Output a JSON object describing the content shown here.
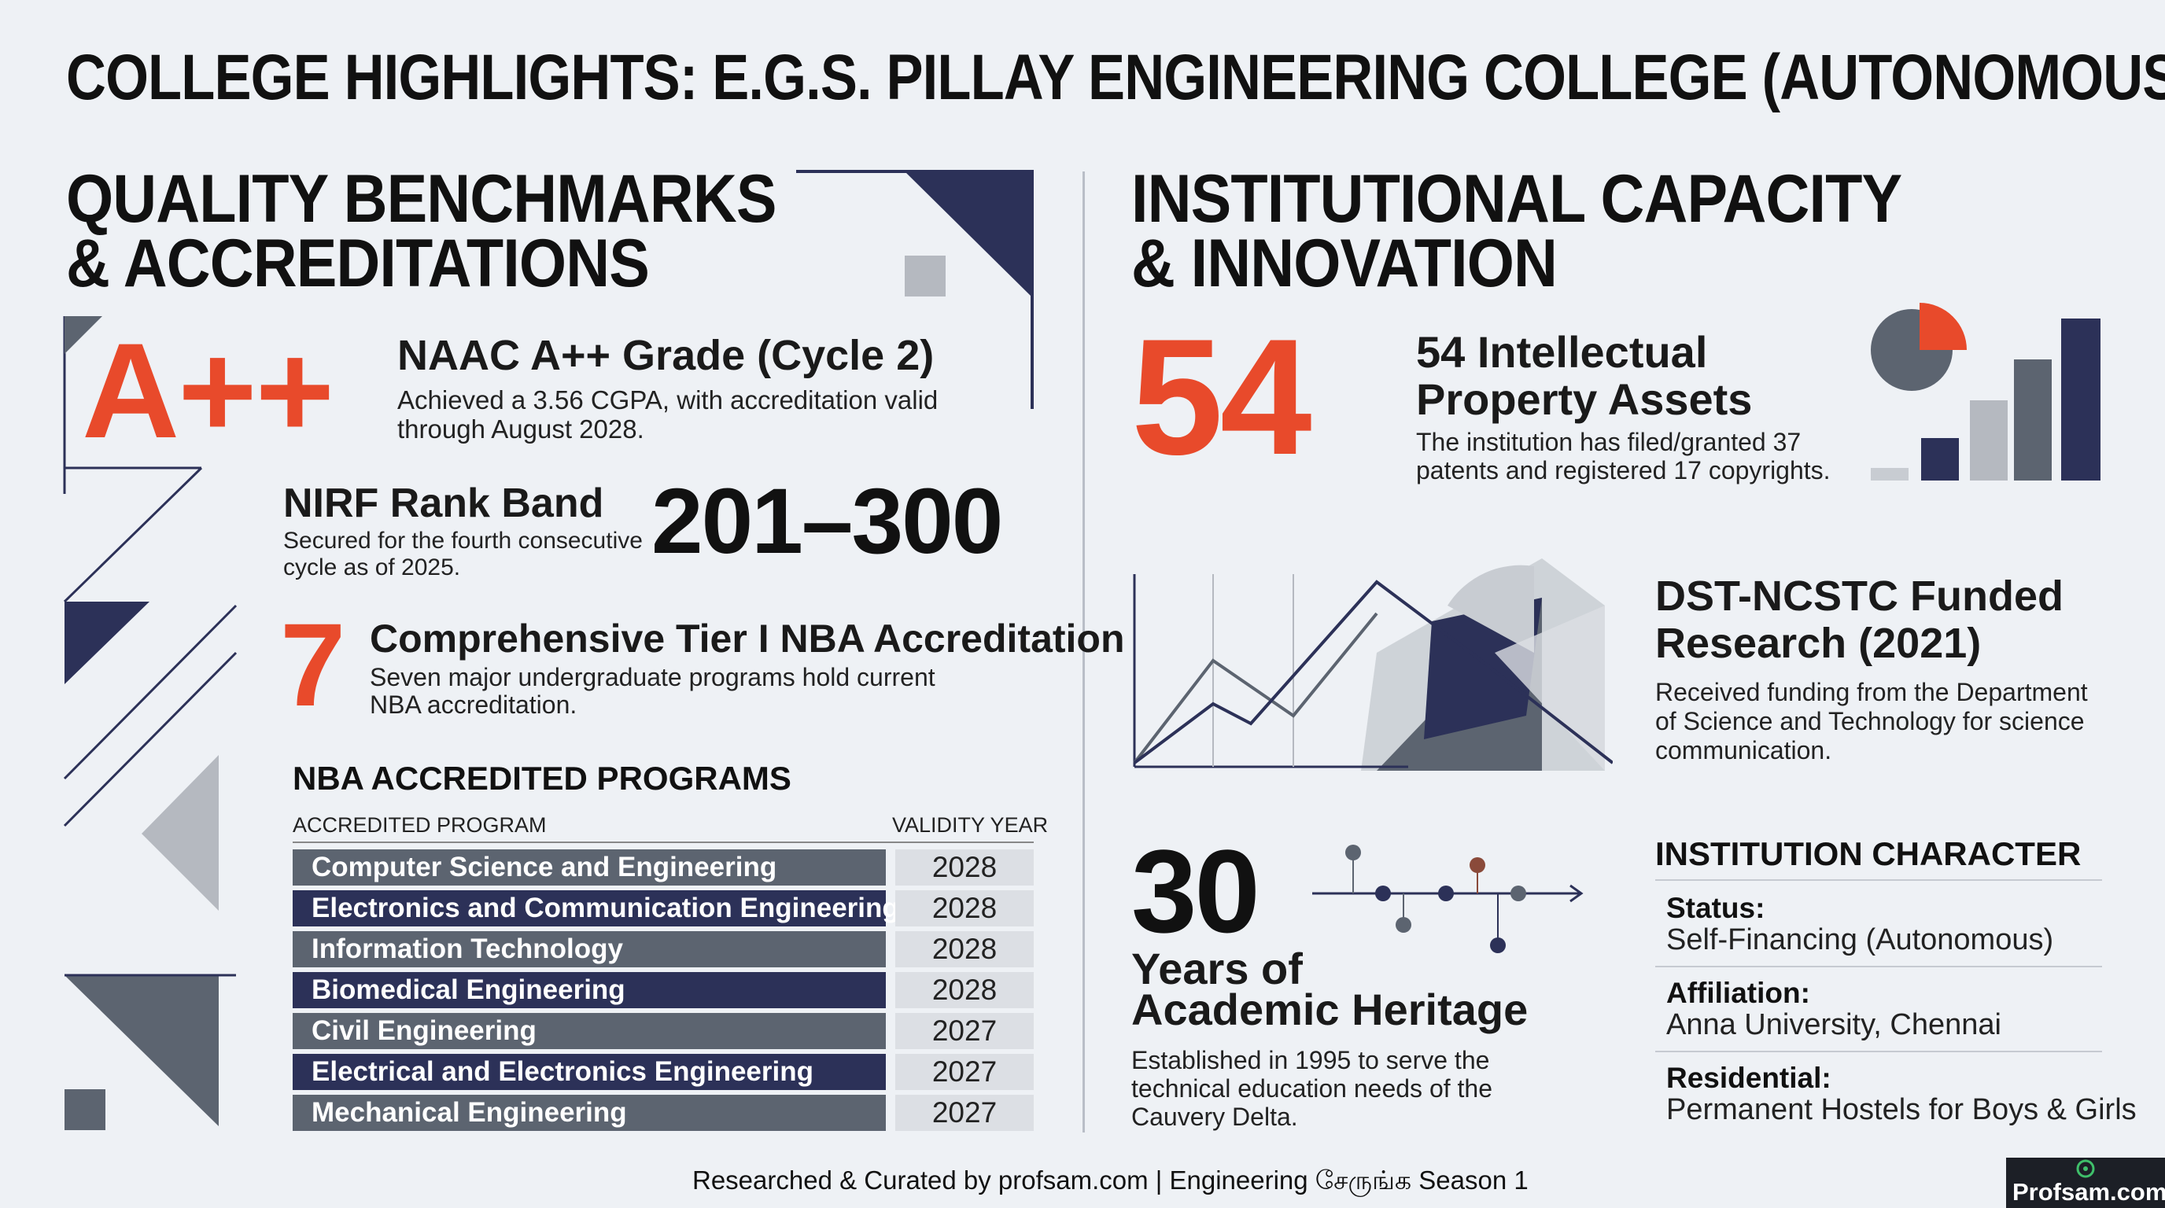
{
  "title": "COLLEGE HIGHLIGHTS: E.G.S. PILLAY ENGINEERING COLLEGE (AUTONOMOUS)",
  "left": {
    "heading_line1": "QUALITY BENCHMARKS",
    "heading_line2": "& ACCREDITATIONS",
    "naac": {
      "grade": "A++",
      "title": "NAAC A++ Grade (Cycle 2)",
      "desc_line1": "Achieved a 3.56 CGPA, with accreditation valid",
      "desc_line2": "through August 2028."
    },
    "nirf": {
      "title": "NIRF Rank Band",
      "desc_line1": "Secured for the fourth consecutive",
      "desc_line2": "cycle as of 2025.",
      "value": "201–300"
    },
    "nba": {
      "count": "7",
      "title": "Comprehensive Tier I NBA Accreditation",
      "desc_line1": "Seven major undergraduate programs hold current",
      "desc_line2": "NBA accreditation."
    },
    "table": {
      "heading": "NBA ACCREDITED PROGRAMS",
      "col_program": "ACCREDITED PROGRAM",
      "col_year": "VALIDITY YEAR",
      "rows": [
        {
          "program": "Computer Science and Engineering",
          "year": "2028"
        },
        {
          "program": "Electronics and Communication Engineering",
          "year": "2028"
        },
        {
          "program": "Information Technology",
          "year": "2028"
        },
        {
          "program": "Biomedical Engineering",
          "year": "2028"
        },
        {
          "program": "Civil Engineering",
          "year": "2027"
        },
        {
          "program": "Electrical and Electronics Engineering",
          "year": "2027"
        },
        {
          "program": "Mechanical Engineering",
          "year": "2027"
        }
      ]
    }
  },
  "right": {
    "heading_line1": "INSTITUTIONAL CAPACITY",
    "heading_line2": "& INNOVATION",
    "ip": {
      "count": "54",
      "title_line1": "54 Intellectual",
      "title_line2": "Property Assets",
      "desc_line1": "The institution has filed/granted 37",
      "desc_line2": "patents and registered 17 copyrights."
    },
    "dst": {
      "title_line1": "DST-NCSTC Funded",
      "title_line2": "Research (2021)",
      "desc_line1": "Received funding from the Department",
      "desc_line2": "of Science and Technology for science",
      "desc_line3": "communication."
    },
    "heritage": {
      "years": "30",
      "title_line1": "Years of",
      "title_line2": "Academic Heritage",
      "desc_line1": "Established in 1995 to serve the",
      "desc_line2": "technical education needs of the",
      "desc_line3": "Cauvery Delta."
    },
    "character": {
      "heading": "INSTITUTION CHARACTER",
      "items": [
        {
          "label": "Status:",
          "value": "Self-Financing (Autonomous)"
        },
        {
          "label": "Affiliation:",
          "value": "Anna University, Chennai"
        },
        {
          "label": "Residential:",
          "value": "Permanent Hostels for Boys & Girls"
        }
      ]
    }
  },
  "footer": {
    "text": "Researched & Curated by profsam.com | Engineering சேருங்க Season 1",
    "logo": "Profsam.com"
  },
  "colors": {
    "accent_red": "#e84a2b",
    "navy": "#2c3158",
    "slate": "#5c6470",
    "gray": "#b5b9c0"
  }
}
